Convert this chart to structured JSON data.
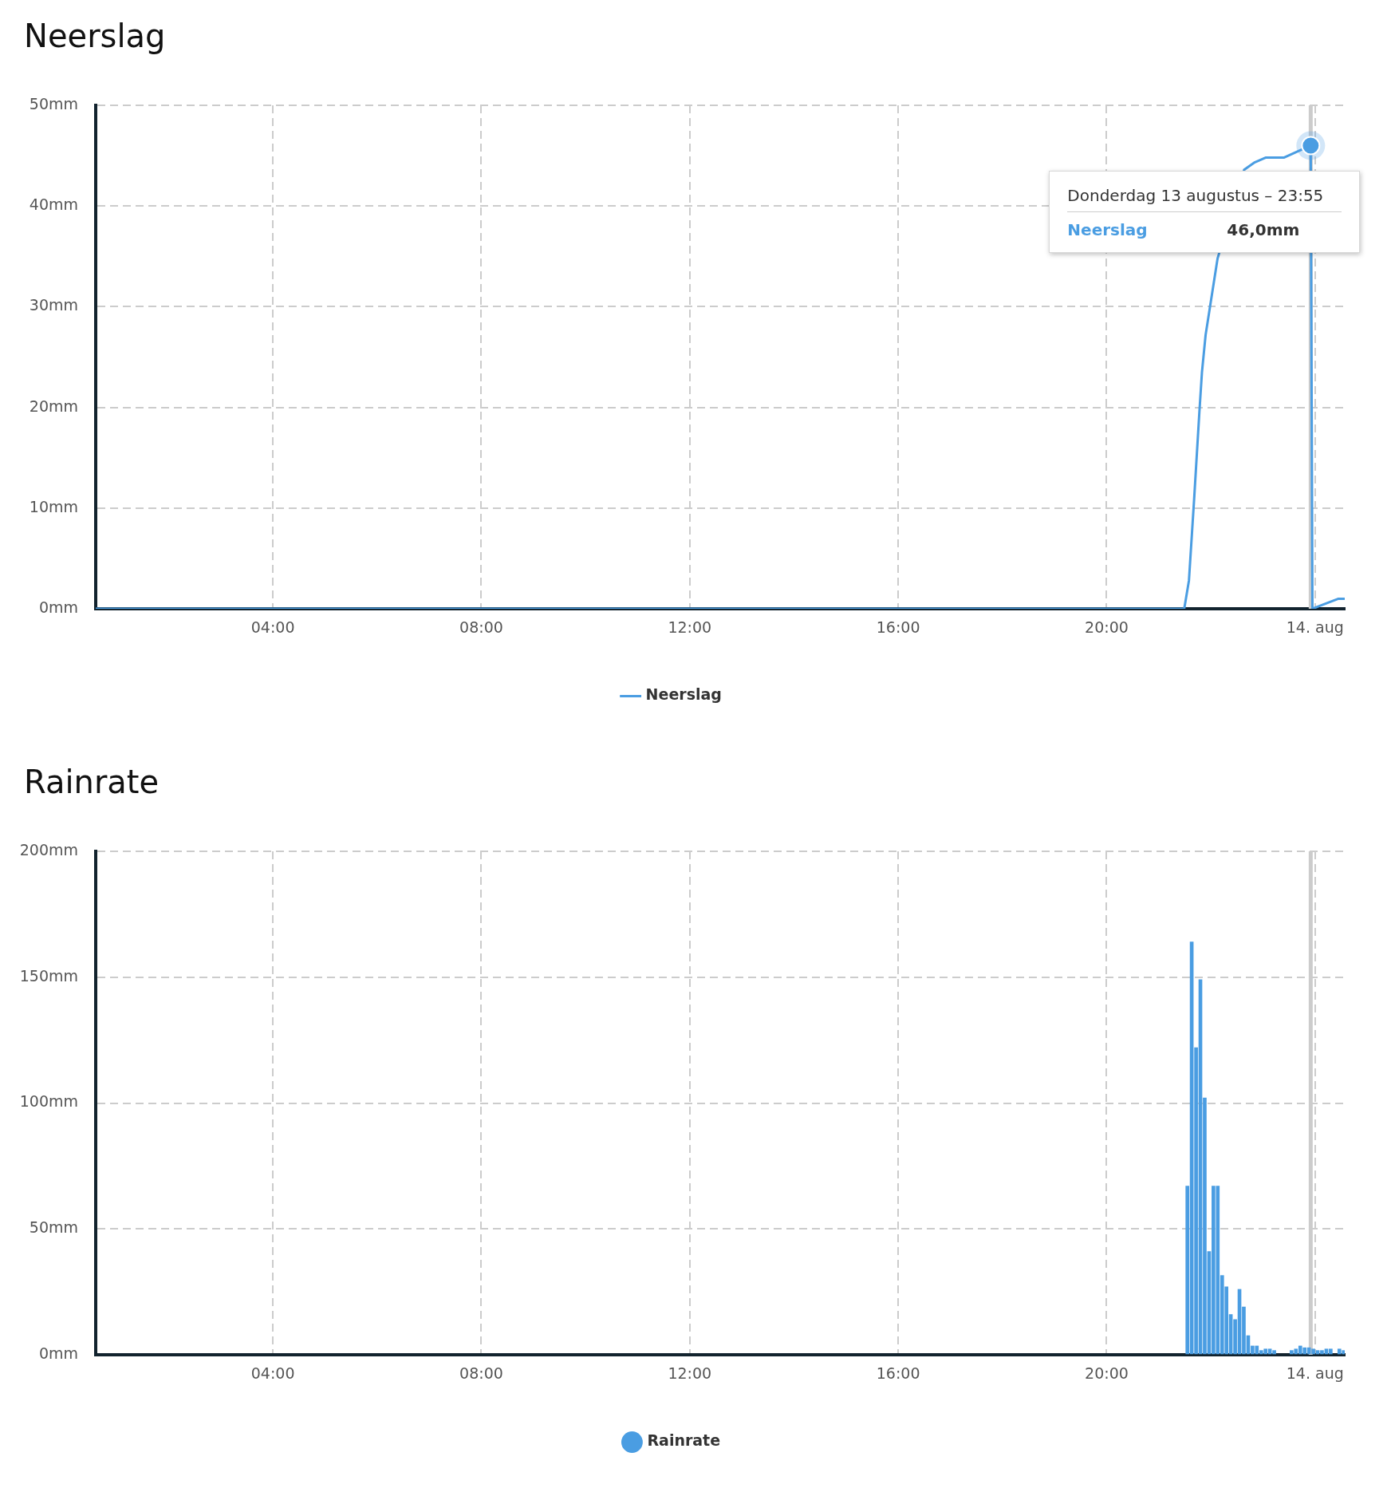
{
  "chart_data": [
    {
      "type": "line",
      "title": "Neerslag",
      "x": [
        0.6,
        21.49,
        21.58,
        21.68,
        21.78,
        21.83,
        21.9,
        22.0,
        22.13,
        22.64,
        22.83,
        23.05,
        23.4,
        23.917,
        23.95,
        24.1,
        24.25,
        24.45,
        24.57
      ],
      "series": [
        {
          "name": "Neerslag",
          "color": "#4a9de2",
          "values": [
            0,
            0,
            2.8,
            10.9,
            19.5,
            23.5,
            27.2,
            30.5,
            34.8,
            43.6,
            44.3,
            44.8,
            44.8,
            46,
            0,
            0.3,
            0.6,
            1.0,
            1.0
          ]
        }
      ],
      "xlim": [
        0.6,
        24.57
      ],
      "xticks": [
        {
          "value": 4,
          "label": "04:00"
        },
        {
          "value": 8,
          "label": "08:00"
        },
        {
          "value": 12,
          "label": "12:00"
        },
        {
          "value": 16,
          "label": "16:00"
        },
        {
          "value": 20,
          "label": "20:00"
        },
        {
          "value": 24,
          "label": "14. aug"
        }
      ],
      "ylim": [
        0,
        50
      ],
      "yticks": [
        {
          "value": 0,
          "label": "0mm"
        },
        {
          "value": 10,
          "label": "10mm"
        },
        {
          "value": 20,
          "label": "20mm"
        },
        {
          "value": 30,
          "label": "30mm"
        },
        {
          "value": 40,
          "label": "40mm"
        },
        {
          "value": 50,
          "label": "50mm"
        }
      ],
      "grid": true,
      "legend": "bottom",
      "marker": "none",
      "line_style": "solid",
      "ref_lines": [
        {
          "axis": "x",
          "value": 23.917,
          "color": "#cccccc"
        }
      ],
      "annotations": [
        {
          "text": "Donderdag 13 augustus – 23:55",
          "x": 23.917,
          "y": 46
        },
        "46,0mm"
      ]
    },
    {
      "type": "bar",
      "title": "Rainrate",
      "x": [
        21.55,
        21.633,
        21.717,
        21.8,
        21.883,
        21.967,
        22.05,
        22.133,
        22.217,
        22.3,
        22.383,
        22.467,
        22.55,
        22.633,
        22.717,
        22.8,
        22.883,
        22.967,
        23.05,
        23.133,
        23.217,
        23.55,
        23.633,
        23.717,
        23.8,
        23.883,
        23.967,
        24.05,
        24.133,
        24.217,
        24.3,
        24.467,
        24.55
      ],
      "series": [
        {
          "name": "Rainrate",
          "color": "#4a9de2",
          "values": [
            67,
            164,
            122,
            149,
            102,
            41,
            67,
            67,
            31.5,
            27,
            16,
            14,
            26,
            19,
            7.6,
            3.5,
            3.5,
            1.7,
            2.3,
            2.3,
            1.7,
            1.7,
            2.3,
            3.5,
            2.8,
            2.8,
            2.3,
            1.7,
            1.7,
            2.3,
            2.3,
            2.3,
            1.7
          ]
        }
      ],
      "xlim": [
        0.6,
        24.57
      ],
      "xticks": [
        {
          "value": 4,
          "label": "04:00"
        },
        {
          "value": 8,
          "label": "08:00"
        },
        {
          "value": 12,
          "label": "12:00"
        },
        {
          "value": 16,
          "label": "16:00"
        },
        {
          "value": 20,
          "label": "20:00"
        },
        {
          "value": 24,
          "label": "14. aug"
        }
      ],
      "ylim": [
        0,
        200
      ],
      "yticks": [
        {
          "value": 0,
          "label": "0mm"
        },
        {
          "value": 50,
          "label": "50mm"
        },
        {
          "value": 100,
          "label": "100mm"
        },
        {
          "value": 150,
          "label": "150mm"
        },
        {
          "value": 200,
          "label": "200mm"
        }
      ],
      "grid": true,
      "legend": "bottom",
      "ref_lines": [
        {
          "axis": "x",
          "value": 23.917,
          "color": "#cccccc"
        }
      ]
    }
  ]
}
